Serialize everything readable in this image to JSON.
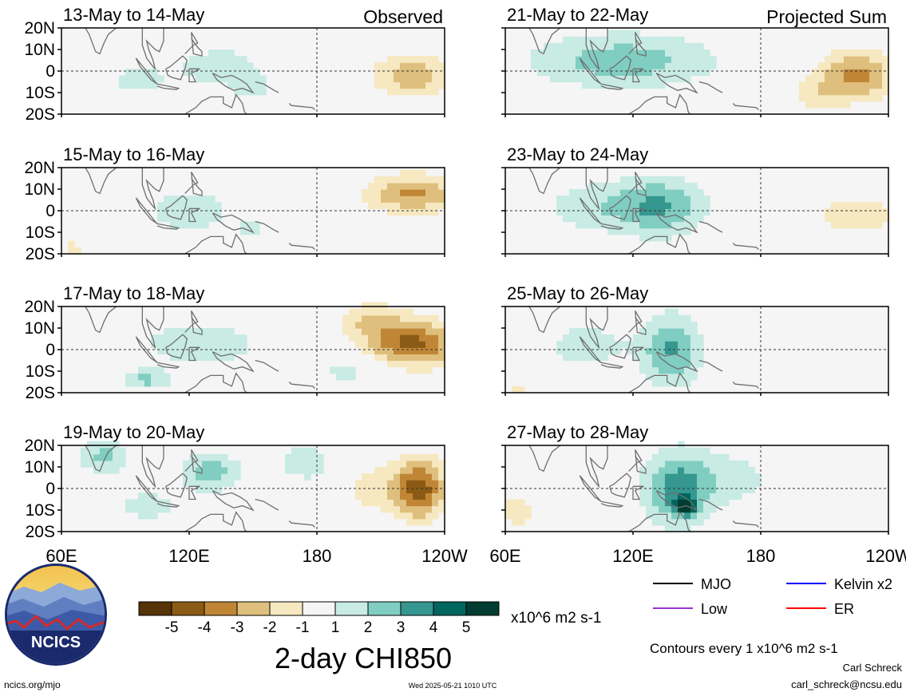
{
  "chart_data": {
    "type": "heatmap",
    "title": "2-day CHI850",
    "columns": [
      {
        "label": "Observed",
        "panels": [
          "13-May to 14-May",
          "15-May to 16-May",
          "17-May to 18-May",
          "19-May to 20-May"
        ]
      },
      {
        "label": "Projected Sum",
        "panels": [
          "21-May to 22-May",
          "23-May to 24-May",
          "25-May to 26-May",
          "27-May to 28-May"
        ]
      }
    ],
    "y_ticks": [
      "20N",
      "10N",
      "0",
      "10S",
      "20S"
    ],
    "x_ticks": [
      "60E",
      "120E",
      "180",
      "120W"
    ],
    "xlim": [
      60,
      240
    ],
    "ylim": [
      -20,
      20
    ],
    "color_scale": {
      "tick_labels": [
        "-5",
        "-4",
        "-3",
        "-2",
        "-1",
        "1",
        "2",
        "3",
        "4",
        "5"
      ],
      "bounds": [
        -6,
        -5,
        -4,
        -3,
        -2,
        -1,
        1,
        2,
        3,
        4,
        5,
        6
      ],
      "colors": [
        "#553407",
        "#8b5a14",
        "#c08636",
        "#dfbf7d",
        "#f6e8c0",
        "#f5f5f5",
        "#c8ebe4",
        "#80cdc1",
        "#35978f",
        "#01665e",
        "#003c30"
      ],
      "units": "x10^6 m2 s-1"
    },
    "legend": [
      {
        "label": "MJO",
        "color": "#000000"
      },
      {
        "label": "Kelvin x2",
        "color": "#0000ff"
      },
      {
        "label": "Low",
        "color": "#9a32cd"
      },
      {
        "label": "ER",
        "color": "#ff0000"
      }
    ],
    "contour_note": "Contours every 1 x10^6 m2 s-1"
  },
  "footer": {
    "logo_text": "NCICS",
    "url": "ncics.org/mjo",
    "timestamp": "Wed 2025-05-21 1010 UTC",
    "author": "Carl Schreck",
    "email": "carl_schreck@ncsu.edu"
  }
}
